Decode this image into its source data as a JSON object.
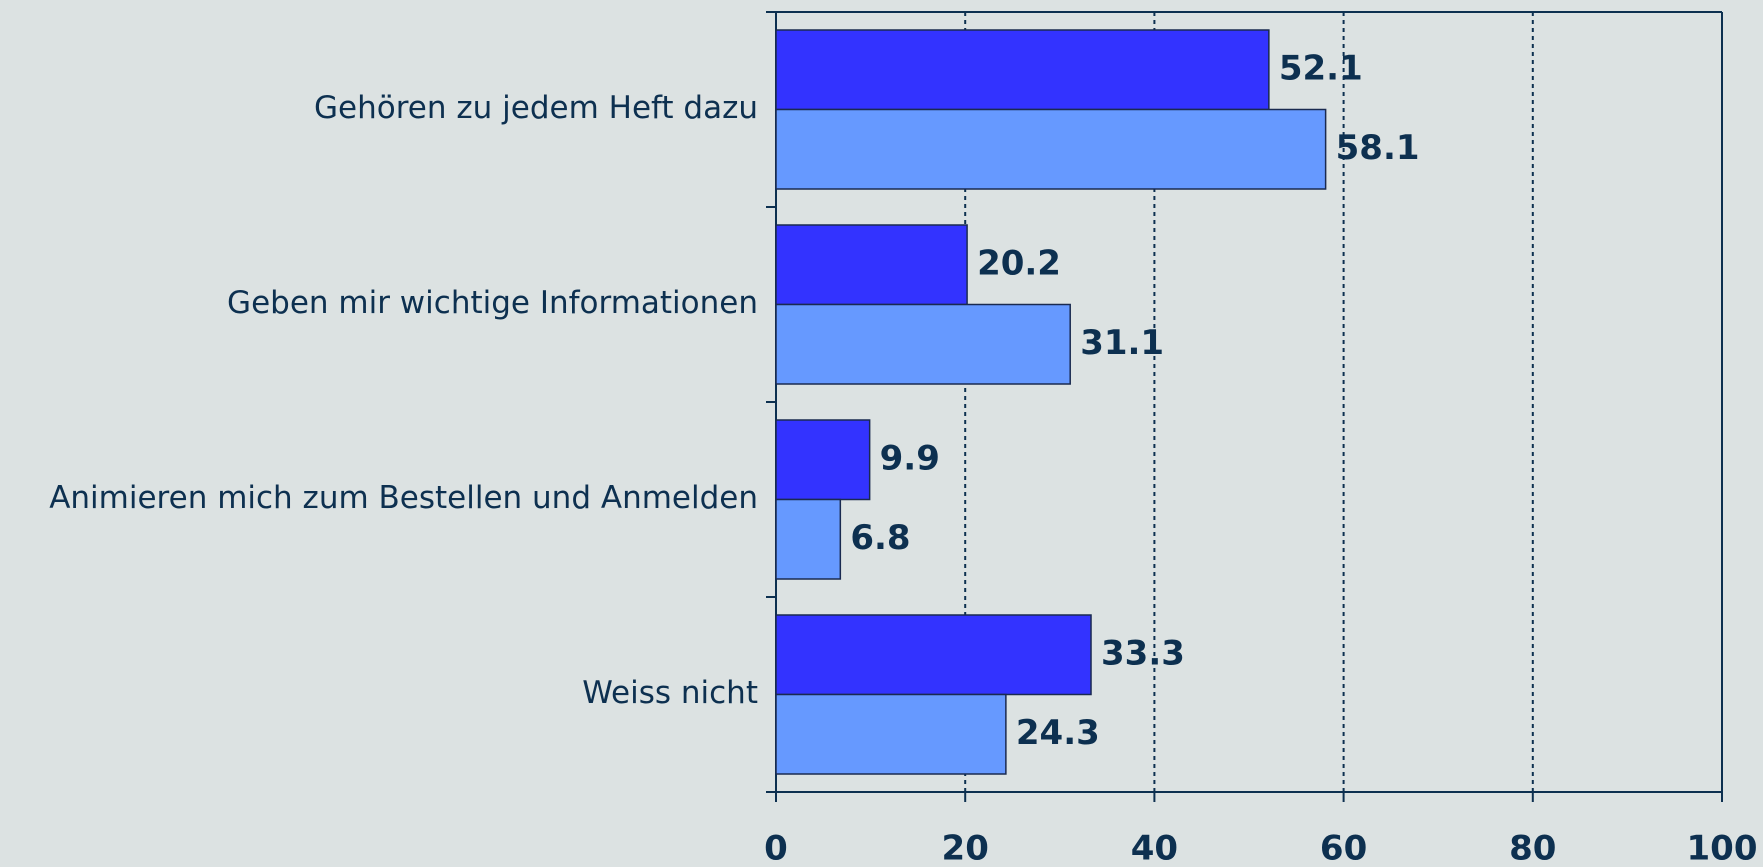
{
  "chart_data": {
    "type": "hbar",
    "categories": [
      "Gehören zu jedem Heft dazu",
      "Geben mir wichtige Informationen",
      "Animieren mich zum Bestellen und Anmelden",
      "Weiss nicht"
    ],
    "series": [
      {
        "color": "#3333ff",
        "values": [
          52.1,
          20.2,
          9.9,
          33.3
        ]
      },
      {
        "color": "#6699ff",
        "values": [
          58.1,
          31.1,
          6.8,
          24.3
        ]
      }
    ],
    "xlim": [
      0,
      100
    ],
    "xticks": [
      0,
      20,
      40,
      60,
      80,
      100
    ],
    "grid": true
  }
}
